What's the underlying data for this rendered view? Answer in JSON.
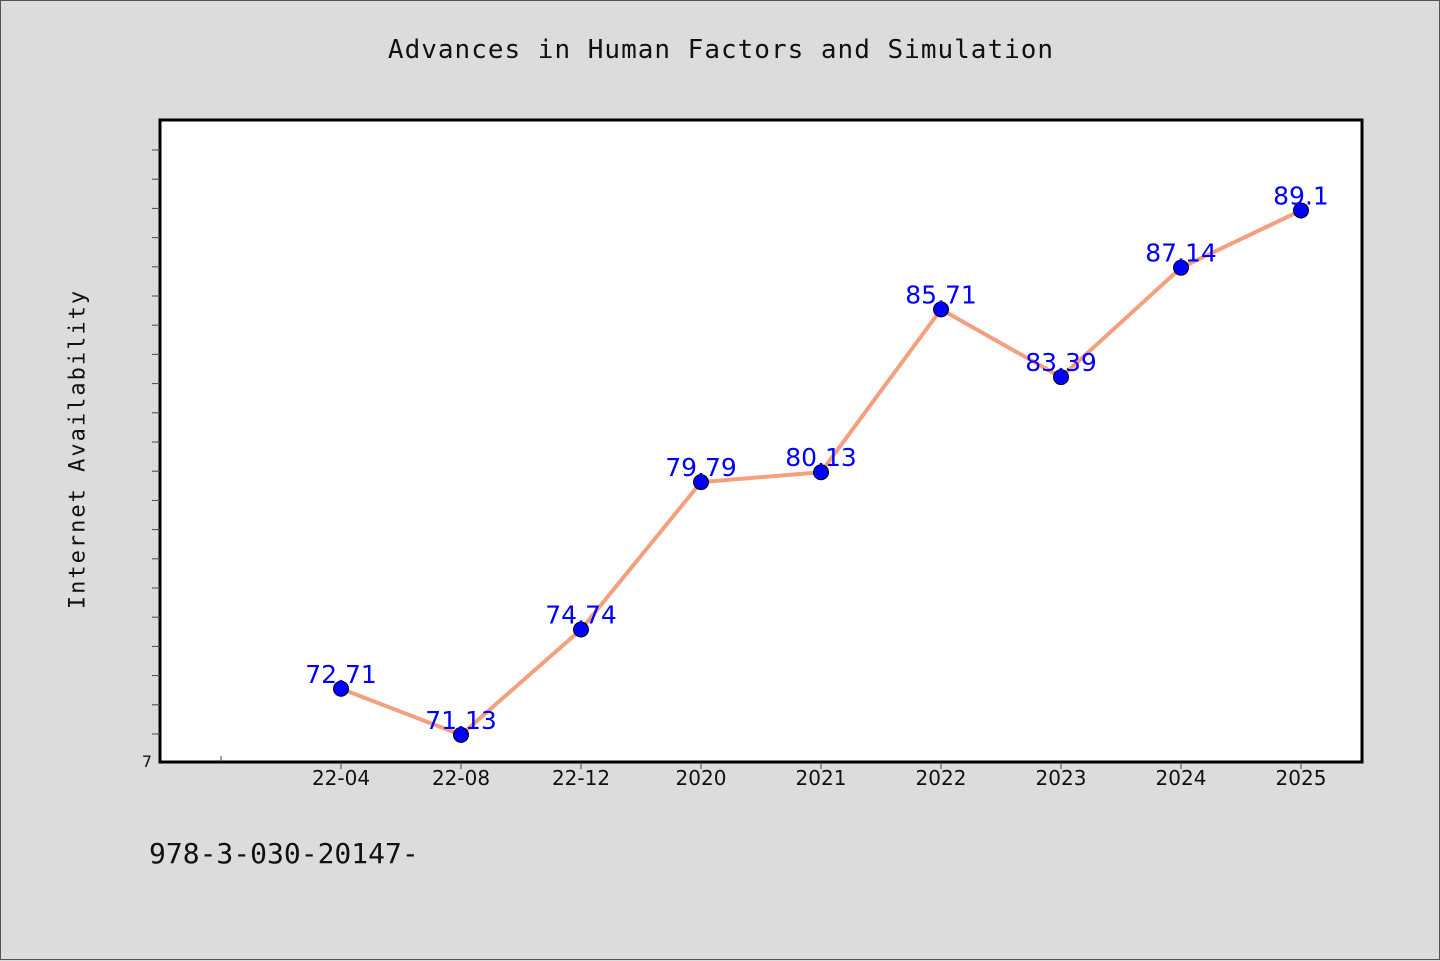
{
  "chart_data": {
    "type": "line",
    "title": "Advances in Human Factors and Simulation",
    "xlabel": "",
    "ylabel": "Internet Availability",
    "categories": [
      "22-04",
      "22-08",
      "22-12",
      "2020",
      "2021",
      "2022",
      "2023",
      "2024",
      "2025"
    ],
    "series": [
      {
        "values": [
          72.71,
          71.13,
          74.74,
          79.79,
          80.13,
          85.71,
          83.39,
          87.14,
          89.1
        ],
        "data_labels": [
          "72.71",
          "71.13",
          "74.74",
          "79.79",
          "80.13",
          "85.71",
          "83.39",
          "87.14",
          "89.1"
        ]
      }
    ],
    "ylim": [
      70.2,
      92.2
    ],
    "y_tick_labels": [
      "7"
    ],
    "grid": false,
    "legend": "none",
    "colors": {
      "line": "#f4a07e",
      "marker": "#0000ff",
      "label": "#0000ff",
      "background": "#dcdcdc",
      "plot_background": "#ffffff"
    }
  },
  "footer": {
    "text": "978-3-030-20147-"
  }
}
